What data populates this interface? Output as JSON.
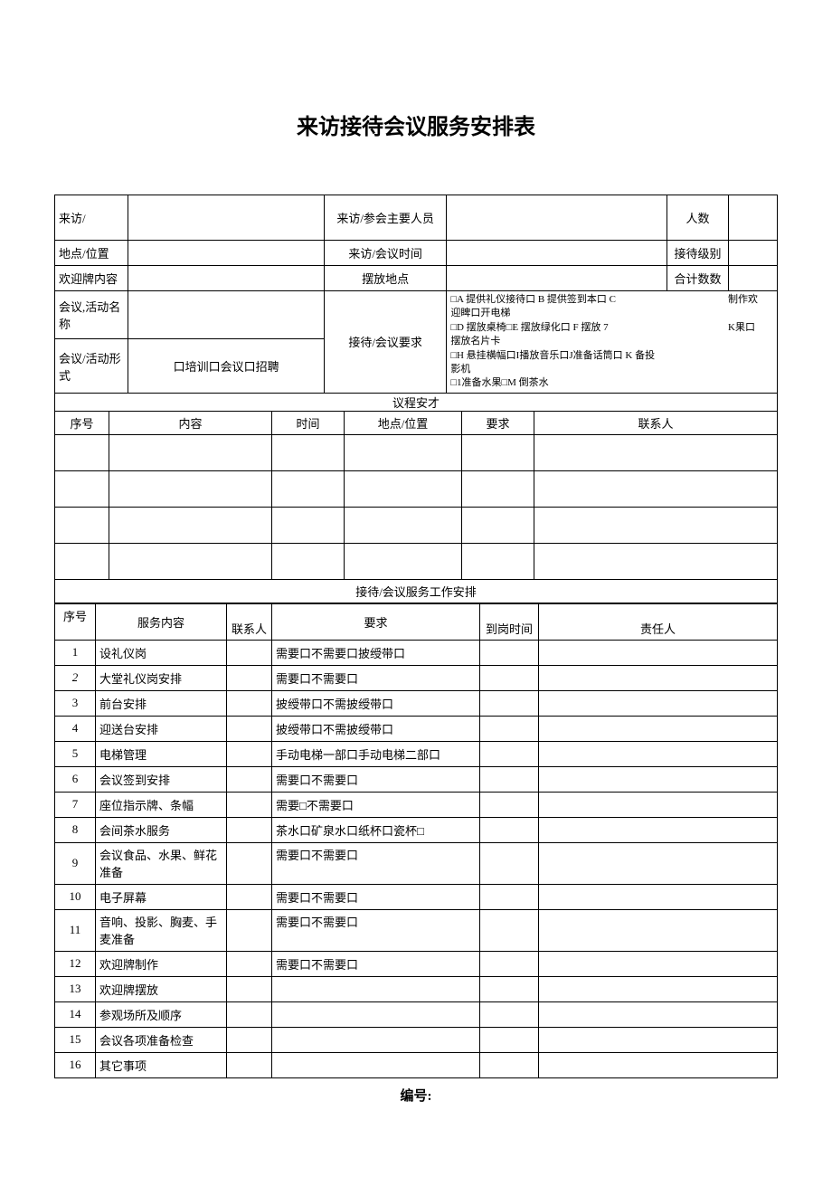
{
  "title": "来访接待会议服务安排表",
  "header": {
    "visitor_label": "来访/",
    "attendees_label": "来访/参会主要人员",
    "people_count_label": "人数",
    "location_label": "地点/位置",
    "time_label": "来访/会议时间",
    "reception_level_label": "接待级别",
    "welcome_sign_label": "欢迎牌内容",
    "placement_label": "摆放地点",
    "total_count_label": "合计数数",
    "activity_name_label": "会议,活动名称",
    "activity_form_label": "会议/活动形式",
    "activity_form_options": "口培训口会议口招聘",
    "requirements_label": "接待/会议要求",
    "requirements_line1": "□A 提供礼仪接待口 B 提供签到本口 C",
    "requirements_line1b": "制作欢",
    "requirements_line2": "迎睥口开电梯",
    "requirements_line3": "□D 摆放桌椅□E 摆放绿化口 F 摆放 7",
    "requirements_line3b": "K果口",
    "requirements_line4": "摆放名片卡",
    "requirements_line5": "□H 悬挂横幅口I播放音乐口J准备话筒口 K 备投",
    "requirements_line6": "影机",
    "requirements_line7": "□1准备水果□M 倒茶水"
  },
  "agenda": {
    "section_title": "议程安才",
    "col_no": "序号",
    "col_content": "内容",
    "col_time": "时间",
    "col_location": "地点/位置",
    "col_requirement": "要求",
    "col_contact": "联系人"
  },
  "service": {
    "section_title": "接待/会议服务工作安排",
    "col_no": "序号",
    "col_content": "服务内容",
    "col_contact": "联系人",
    "col_requirement": "要求",
    "col_arrival": "到岗时间",
    "col_responsible": "责任人",
    "rows": [
      {
        "no": "1",
        "content": "设礼仪岗",
        "req": "需要口不需要口披绶带口"
      },
      {
        "no": "2",
        "content": "大堂礼仪岗安排",
        "req": "需要口不需要口"
      },
      {
        "no": "3",
        "content": "前台安排",
        "req": "披绶带口不需披绶带口"
      },
      {
        "no": "4",
        "content": "迎送台安排",
        "req": "披绶带口不需披绶带口"
      },
      {
        "no": "5",
        "content": "电梯管理",
        "req": "手动电梯一部口手动电梯二部口"
      },
      {
        "no": "6",
        "content": "会议签到安排",
        "req": "需要口不需要口"
      },
      {
        "no": "7",
        "content": "座位指示牌、条幅",
        "req": "需要□不需要口"
      },
      {
        "no": "8",
        "content": "会间茶水服务",
        "req": "茶水口矿泉水口纸杯口瓷杯□"
      },
      {
        "no": "9",
        "content": "会议食品、水果、鲜花准备",
        "req": "需要口不需要口"
      },
      {
        "no": "10",
        "content": "电子屏幕",
        "req": "需要口不需要口"
      },
      {
        "no": "11",
        "content": "音响、投影、胸麦、手麦准备",
        "req": "需要口不需要口"
      },
      {
        "no": "12",
        "content": "欢迎牌制作",
        "req": "需要口不需要口"
      },
      {
        "no": "13",
        "content": "欢迎牌摆放",
        "req": ""
      },
      {
        "no": "14",
        "content": "参观场所及顺序",
        "req": ""
      },
      {
        "no": "15",
        "content": "会议各项准备检查",
        "req": ""
      },
      {
        "no": "16",
        "content": "其它事项",
        "req": ""
      }
    ]
  },
  "footer": "编号:"
}
